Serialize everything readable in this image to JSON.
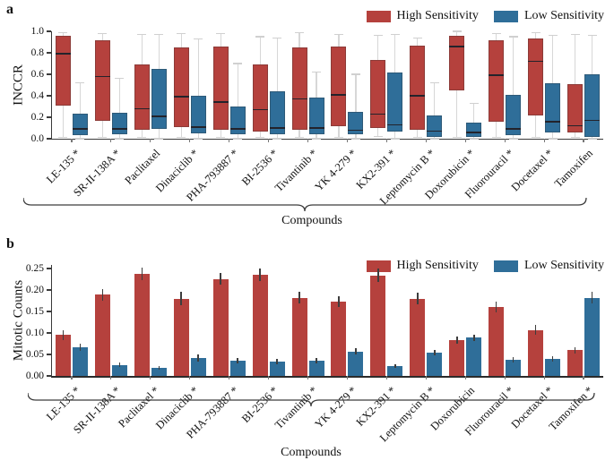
{
  "panels": [
    {
      "panel_label": "a"
    },
    {
      "panel_label": "b"
    }
  ],
  "chart_data": [
    {
      "type": "box",
      "panel": "a",
      "ylabel": "INCCR",
      "xlabel": "Compounds",
      "ylim": [
        0.0,
        1.0
      ],
      "grid": false,
      "legend_position": "top-right",
      "yticks": [
        {
          "v": 0.0,
          "label": "0.0"
        },
        {
          "v": 0.2,
          "label": "0.2"
        },
        {
          "v": 0.4,
          "label": "0.4"
        },
        {
          "v": 0.6,
          "label": "0.6"
        },
        {
          "v": 0.8,
          "label": "0.8"
        },
        {
          "v": 1.0,
          "label": "1.0"
        }
      ],
      "categories": [
        "LE-135 *",
        "SR-II-138A *",
        "Paclitaxel",
        "Dinaciclib *",
        "PHA-793887 *",
        "BI-2536 *",
        "Tivantinib *",
        "YK 4-279 *",
        "KX2-391 *",
        "Leptomycin B *",
        "Doxorubicin *",
        "Fluorouracil *",
        "Docetaxel *",
        "Tamoxifen"
      ],
      "series": [
        {
          "name": "High Sensitivity",
          "color": "#b5413d",
          "boxes": [
            {
              "whislo": 0.01,
              "q1": 0.31,
              "med": 0.79,
              "q3": 0.96,
              "whishi": 0.99
            },
            {
              "whislo": 0.01,
              "q1": 0.17,
              "med": 0.58,
              "q3": 0.92,
              "whishi": 0.98
            },
            {
              "whislo": 0.01,
              "q1": 0.08,
              "med": 0.28,
              "q3": 0.69,
              "whishi": 0.97
            },
            {
              "whislo": 0.01,
              "q1": 0.11,
              "med": 0.39,
              "q3": 0.85,
              "whishi": 0.98
            },
            {
              "whislo": 0.01,
              "q1": 0.08,
              "med": 0.34,
              "q3": 0.86,
              "whishi": 0.98
            },
            {
              "whislo": 0.01,
              "q1": 0.07,
              "med": 0.27,
              "q3": 0.69,
              "whishi": 0.95
            },
            {
              "whislo": 0.01,
              "q1": 0.08,
              "med": 0.37,
              "q3": 0.85,
              "whishi": 0.99
            },
            {
              "whislo": 0.01,
              "q1": 0.12,
              "med": 0.41,
              "q3": 0.86,
              "whishi": 0.97
            },
            {
              "whislo": 0.02,
              "q1": 0.1,
              "med": 0.23,
              "q3": 0.73,
              "whishi": 0.96
            },
            {
              "whislo": 0.01,
              "q1": 0.08,
              "med": 0.4,
              "q3": 0.87,
              "whishi": 0.94
            },
            {
              "whislo": 0.01,
              "q1": 0.45,
              "med": 0.86,
              "q3": 0.96,
              "whishi": 1.0
            },
            {
              "whislo": 0.01,
              "q1": 0.16,
              "med": 0.59,
              "q3": 0.92,
              "whishi": 0.98
            },
            {
              "whislo": 0.01,
              "q1": 0.22,
              "med": 0.72,
              "q3": 0.93,
              "whishi": 0.99
            },
            {
              "whislo": 0.01,
              "q1": 0.06,
              "med": 0.12,
              "q3": 0.51,
              "whishi": 0.97
            }
          ]
        },
        {
          "name": "Low Sensitivity",
          "color": "#2f6e99",
          "boxes": [
            {
              "whislo": 0.0,
              "q1": 0.03,
              "med": 0.09,
              "q3": 0.23,
              "whishi": 0.52
            },
            {
              "whislo": 0.0,
              "q1": 0.04,
              "med": 0.09,
              "q3": 0.24,
              "whishi": 0.56
            },
            {
              "whislo": 0.0,
              "q1": 0.09,
              "med": 0.21,
              "q3": 0.65,
              "whishi": 0.97
            },
            {
              "whislo": 0.0,
              "q1": 0.05,
              "med": 0.11,
              "q3": 0.4,
              "whishi": 0.93
            },
            {
              "whislo": 0.0,
              "q1": 0.04,
              "med": 0.09,
              "q3": 0.3,
              "whishi": 0.7
            },
            {
              "whislo": 0.0,
              "q1": 0.04,
              "med": 0.1,
              "q3": 0.44,
              "whishi": 0.94
            },
            {
              "whislo": 0.0,
              "q1": 0.04,
              "med": 0.1,
              "q3": 0.38,
              "whishi": 0.62
            },
            {
              "whislo": 0.0,
              "q1": 0.04,
              "med": 0.08,
              "q3": 0.25,
              "whishi": 0.6
            },
            {
              "whislo": 0.0,
              "q1": 0.07,
              "med": 0.13,
              "q3": 0.62,
              "whishi": 0.97
            },
            {
              "whislo": 0.0,
              "q1": 0.02,
              "med": 0.07,
              "q3": 0.22,
              "whishi": 0.52
            },
            {
              "whislo": 0.0,
              "q1": 0.02,
              "med": 0.06,
              "q3": 0.15,
              "whishi": 0.33
            },
            {
              "whislo": 0.0,
              "q1": 0.03,
              "med": 0.09,
              "q3": 0.41,
              "whishi": 0.95
            },
            {
              "whislo": 0.0,
              "q1": 0.06,
              "med": 0.16,
              "q3": 0.52,
              "whishi": 0.96
            },
            {
              "whislo": 0.0,
              "q1": 0.02,
              "med": 0.17,
              "q3": 0.6,
              "whishi": 0.96
            }
          ]
        }
      ]
    },
    {
      "type": "bar",
      "panel": "b",
      "ylabel": "Mitotic Counts",
      "xlabel": "Compounds",
      "ylim": [
        0.0,
        0.258
      ],
      "grid": false,
      "legend_position": "top-right",
      "yticks": [
        {
          "v": 0.0,
          "label": "0.00"
        },
        {
          "v": 0.05,
          "label": "0.05"
        },
        {
          "v": 0.1,
          "label": "0.10"
        },
        {
          "v": 0.15,
          "label": "0.15"
        },
        {
          "v": 0.2,
          "label": "0.20"
        },
        {
          "v": 0.25,
          "label": "0.25"
        }
      ],
      "categories": [
        "LE-135 *",
        "SR-II-138A *",
        "Paclitaxel *",
        "Dinaciclib *",
        "PHA-793887 *",
        "BI-2536 *",
        "Tivantinib *",
        "YK 4-279 *",
        "KX2-391 *",
        "Leptomycin B *",
        "Doxorubicin",
        "Fluorouracil *",
        "Docetaxel *",
        "Tamoxifen *"
      ],
      "series": [
        {
          "name": "High Sensitivity",
          "color": "#b5413d",
          "values": [
            0.095,
            0.189,
            0.238,
            0.18,
            0.226,
            0.236,
            0.182,
            0.173,
            0.234,
            0.18,
            0.084,
            0.16,
            0.107,
            0.06
          ],
          "errors": [
            0.012,
            0.014,
            0.015,
            0.016,
            0.013,
            0.015,
            0.013,
            0.012,
            0.016,
            0.013,
            0.008,
            0.013,
            0.012,
            0.007
          ]
        },
        {
          "name": "Low Sensitivity",
          "color": "#2f6e99",
          "values": [
            0.066,
            0.026,
            0.019,
            0.042,
            0.036,
            0.034,
            0.036,
            0.057,
            0.023,
            0.054,
            0.089,
            0.037,
            0.04,
            0.182
          ],
          "errors": [
            0.008,
            0.005,
            0.004,
            0.008,
            0.006,
            0.006,
            0.006,
            0.007,
            0.004,
            0.007,
            0.007,
            0.006,
            0.006,
            0.014
          ]
        }
      ]
    }
  ]
}
